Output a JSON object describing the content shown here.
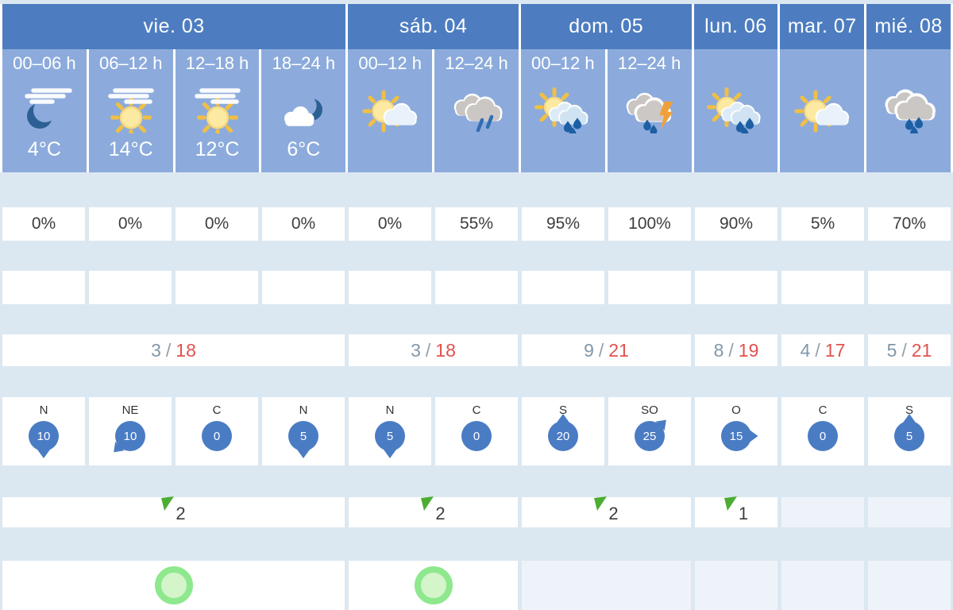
{
  "colors": {
    "day_header_bg": "#4d7dc0",
    "subheader_bg": "#8cabdc",
    "page_bg": "#dce8f1",
    "cell_white": "#ffffff",
    "cell_pale": "#eef3fa",
    "wind_badge": "#4a7cc4",
    "temp_min": "#8197a9",
    "temp_max": "#e0524e",
    "text_dark": "#3d3d3d",
    "uv_flag_green": "#4cad33",
    "warning_ring": "#8ee88d",
    "warning_fill": "#d4f4ca",
    "moon": "#2c6095",
    "sun_core": "#fce9a2",
    "sun_rays": "#f1bf45",
    "cloud_gray": "#c9c5c2",
    "rain_drop": "#1d5fa3",
    "lightning": "#f0a03b"
  },
  "header": {
    "days": [
      {
        "label": "vie. 03",
        "span": 4
      },
      {
        "label": "sáb. 04",
        "span": 2
      },
      {
        "label": "dom. 05",
        "span": 2
      },
      {
        "label": "lun. 06",
        "span": 1
      },
      {
        "label": "mar. 07",
        "span": 1
      },
      {
        "label": "mié. 08",
        "span": 1
      }
    ]
  },
  "subheader": {
    "periods": [
      {
        "time": "00–06 h",
        "icon": "moon-cirrus",
        "temp": "4°C"
      },
      {
        "time": "06–12 h",
        "icon": "sun-cirrus",
        "temp": "14°C"
      },
      {
        "time": "12–18 h",
        "icon": "sun-cirrus",
        "temp": "12°C"
      },
      {
        "time": "18–24 h",
        "icon": "moon-cloud",
        "temp": "6°C"
      },
      {
        "time": "00–12 h",
        "icon": "sun-cloud",
        "temp": ""
      },
      {
        "time": "12–24 h",
        "icon": "rain-light",
        "temp": ""
      },
      {
        "time": "00–12 h",
        "icon": "sun-rain",
        "temp": ""
      },
      {
        "time": "12–24 h",
        "icon": "storm",
        "temp": ""
      },
      {
        "time": "",
        "icon": "sun-rain",
        "temp": ""
      },
      {
        "time": "",
        "icon": "sun-cloud",
        "temp": ""
      },
      {
        "time": "",
        "icon": "rain",
        "temp": ""
      }
    ]
  },
  "rows": {
    "precip_probability": {
      "values": [
        "0%",
        "0%",
        "0%",
        "0%",
        "0%",
        "55%",
        "95%",
        "100%",
        "90%",
        "5%",
        "70%"
      ]
    },
    "precip_amount": {
      "values": [
        "",
        "",
        "",
        "",
        "",
        "",
        "",
        "",
        "",
        "",
        ""
      ]
    },
    "temperature": {
      "separator": "/",
      "groups": [
        {
          "min": "3",
          "max": "18",
          "span": 4
        },
        {
          "min": "3",
          "max": "18",
          "span": 2
        },
        {
          "min": "9",
          "max": "21",
          "span": 2
        },
        {
          "min": "8",
          "max": "19",
          "span": 1
        },
        {
          "min": "4",
          "max": "17",
          "span": 1
        },
        {
          "min": "5",
          "max": "21",
          "span": 1
        }
      ]
    },
    "wind": {
      "cells": [
        {
          "direction": "N",
          "speed": "10",
          "arrow": "down"
        },
        {
          "direction": "NE",
          "speed": "10",
          "arrow": "down-left"
        },
        {
          "direction": "C",
          "speed": "0",
          "arrow": "none"
        },
        {
          "direction": "N",
          "speed": "5",
          "arrow": "down"
        },
        {
          "direction": "N",
          "speed": "5",
          "arrow": "down"
        },
        {
          "direction": "C",
          "speed": "0",
          "arrow": "none"
        },
        {
          "direction": "S",
          "speed": "20",
          "arrow": "up"
        },
        {
          "direction": "SO",
          "speed": "25",
          "arrow": "up-right"
        },
        {
          "direction": "O",
          "speed": "15",
          "arrow": "right"
        },
        {
          "direction": "C",
          "speed": "0",
          "arrow": "none"
        },
        {
          "direction": "S",
          "speed": "5",
          "arrow": "up"
        }
      ]
    },
    "uv_index": {
      "groups": [
        {
          "value": "2",
          "span": 4,
          "empty": false
        },
        {
          "value": "2",
          "span": 2,
          "empty": false
        },
        {
          "value": "2",
          "span": 2,
          "empty": false
        },
        {
          "value": "1",
          "span": 1,
          "empty": false
        },
        {
          "value": "",
          "span": 1,
          "empty": true
        },
        {
          "value": "",
          "span": 1,
          "empty": true
        }
      ]
    },
    "warnings": {
      "groups": [
        {
          "has_indicator": true,
          "span": 4,
          "empty": false
        },
        {
          "has_indicator": true,
          "span": 2,
          "empty": false
        },
        {
          "has_indicator": false,
          "span": 2,
          "empty": true
        },
        {
          "has_indicator": false,
          "span": 1,
          "empty": true
        },
        {
          "has_indicator": false,
          "span": 1,
          "empty": true
        },
        {
          "has_indicator": false,
          "span": 1,
          "empty": true
        }
      ]
    }
  }
}
